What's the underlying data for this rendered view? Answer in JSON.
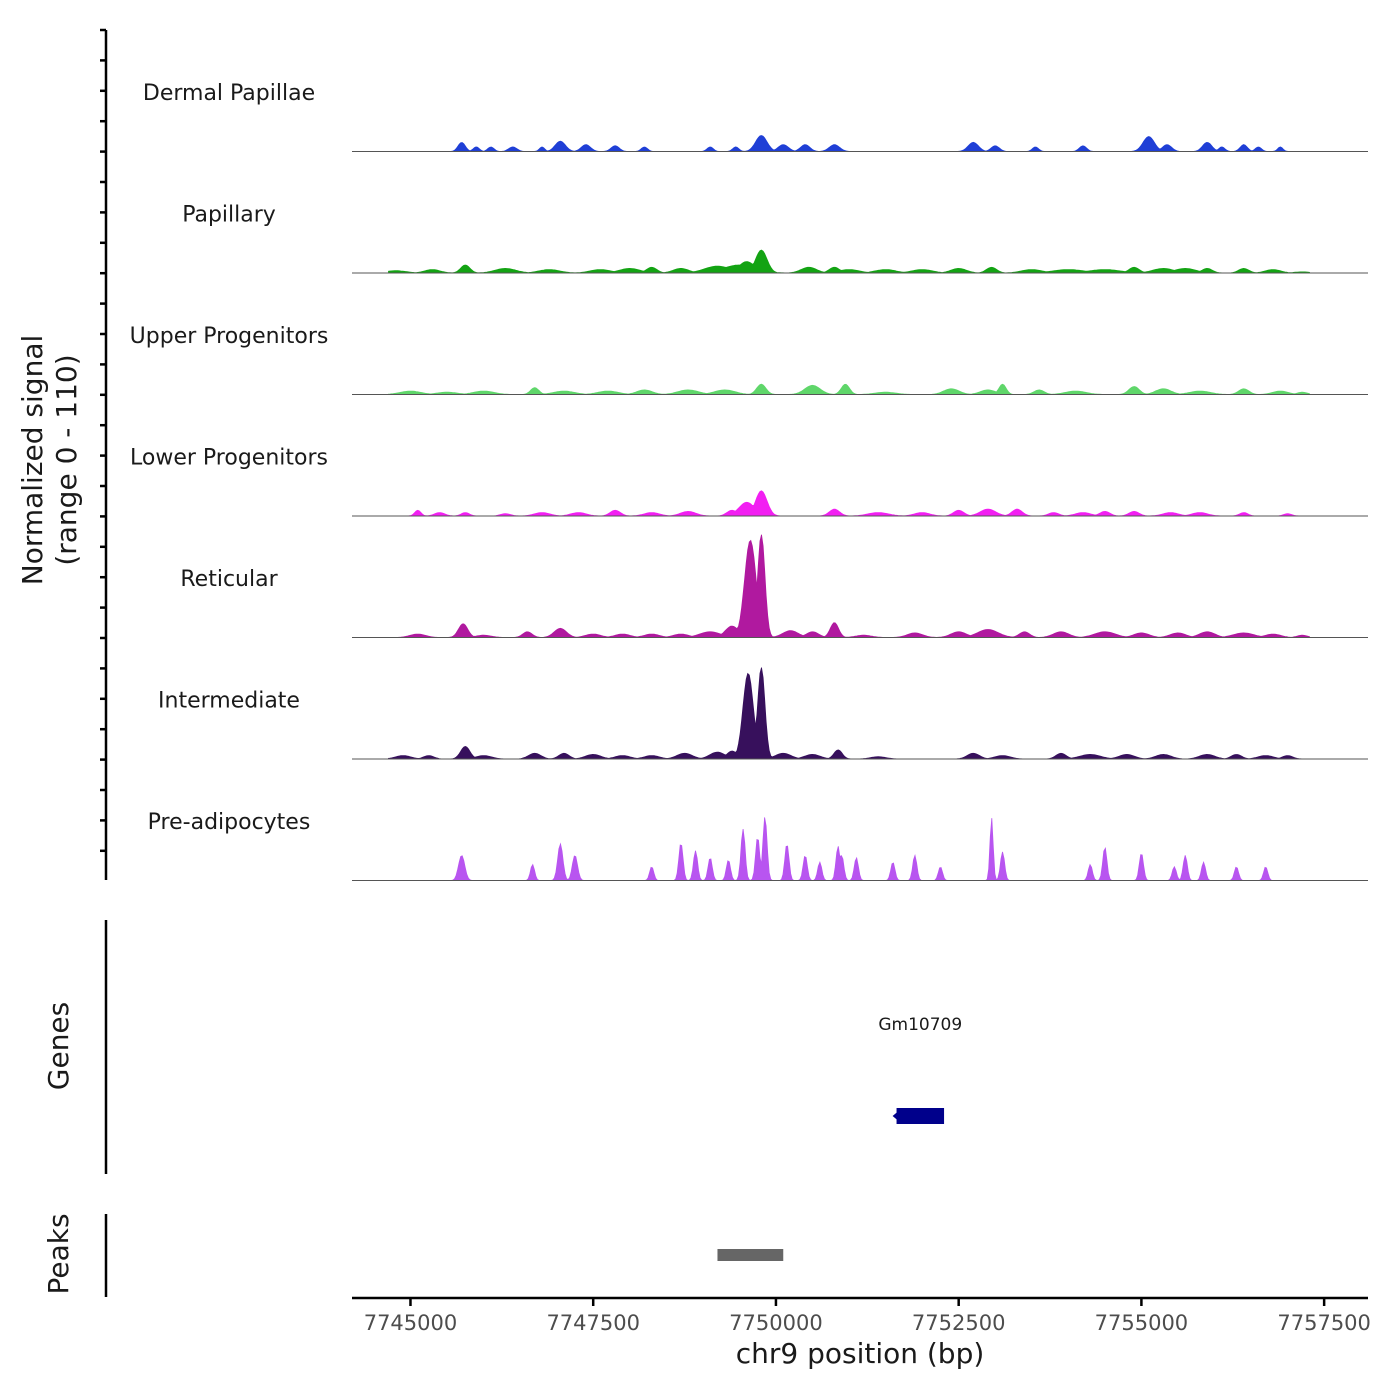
{
  "chart_data": {
    "type": "area",
    "title": "",
    "chromosome": "chr9",
    "xlabel": "chr9 position (bp)",
    "ylabel_line1": "Normalized signal",
    "ylabel_line2": "(range 0 - 110)",
    "y_range": [
      0,
      110
    ],
    "xlim": [
      7744200,
      7758100
    ],
    "x_ticks": [
      7745000,
      7747500,
      7750000,
      7752500,
      7755000,
      7757500
    ],
    "x_tick_labels": [
      "7745000",
      "7747500",
      "7750000",
      "7752500",
      "7755000",
      "7757500"
    ],
    "track_colors": {
      "Dermal Papillae": "#1f3fd6",
      "Papillary": "#13a313",
      "Upper Progenitors": "#5fd66a",
      "Lower Progenitors": "#f21ff2",
      "Reticular": "#b0199f",
      "Intermediate": "#37105c",
      "Pre-adipocytes": "#b855f0"
    },
    "series": [
      {
        "name": "Dermal Papillae",
        "peaks": [
          [
            7745700,
            8,
            70
          ],
          [
            7745900,
            4,
            60
          ],
          [
            7746100,
            4,
            60
          ],
          [
            7746400,
            4,
            80
          ],
          [
            7746800,
            4,
            50
          ],
          [
            7747050,
            9,
            100
          ],
          [
            7747400,
            6,
            90
          ],
          [
            7747800,
            5,
            80
          ],
          [
            7748200,
            4,
            60
          ],
          [
            7749100,
            4,
            60
          ],
          [
            7749450,
            4,
            60
          ],
          [
            7749800,
            14,
            110
          ],
          [
            7750100,
            6,
            100
          ],
          [
            7750400,
            6,
            90
          ],
          [
            7750800,
            6,
            100
          ],
          [
            7752700,
            8,
            100
          ],
          [
            7753000,
            5,
            80
          ],
          [
            7753550,
            4,
            60
          ],
          [
            7754200,
            5,
            70
          ],
          [
            7755100,
            13,
            110
          ],
          [
            7755350,
            6,
            90
          ],
          [
            7755900,
            8,
            90
          ],
          [
            7756100,
            4,
            60
          ],
          [
            7756400,
            6,
            70
          ],
          [
            7756600,
            4,
            60
          ],
          [
            7756900,
            4,
            50
          ]
        ]
      },
      {
        "name": "Papillary",
        "peaks": [
          [
            7744800,
            2,
            200
          ],
          [
            7745300,
            3,
            150
          ],
          [
            7745750,
            7,
            90
          ],
          [
            7746300,
            4,
            200
          ],
          [
            7746900,
            3,
            200
          ],
          [
            7747600,
            3,
            200
          ],
          [
            7748000,
            4,
            200
          ],
          [
            7748300,
            5,
            100
          ],
          [
            7748700,
            4,
            150
          ],
          [
            7749200,
            6,
            250
          ],
          [
            7749600,
            10,
            150
          ],
          [
            7749800,
            20,
            110
          ],
          [
            7749500,
            7,
            300
          ],
          [
            7750450,
            5,
            150
          ],
          [
            7750800,
            5,
            100
          ],
          [
            7751000,
            3,
            200
          ],
          [
            7751500,
            3,
            200
          ],
          [
            7752000,
            3,
            200
          ],
          [
            7752500,
            4,
            150
          ],
          [
            7752950,
            5,
            100
          ],
          [
            7753500,
            3,
            200
          ],
          [
            7754000,
            3,
            300
          ],
          [
            7754500,
            3,
            300
          ],
          [
            7754900,
            5,
            100
          ],
          [
            7755300,
            4,
            200
          ],
          [
            7755600,
            4,
            200
          ],
          [
            7755900,
            4,
            100
          ],
          [
            7756400,
            4,
            100
          ],
          [
            7756800,
            3,
            150
          ],
          [
            7757200,
            1,
            150
          ]
        ]
      },
      {
        "name": "Upper Progenitors",
        "peaks": [
          [
            7745000,
            3,
            200
          ],
          [
            7745500,
            2,
            200
          ],
          [
            7746000,
            3,
            200
          ],
          [
            7746700,
            6,
            80
          ],
          [
            7747100,
            3,
            200
          ],
          [
            7747700,
            3,
            200
          ],
          [
            7748200,
            4,
            150
          ],
          [
            7748800,
            4,
            200
          ],
          [
            7749300,
            4,
            200
          ],
          [
            7749800,
            9,
            90
          ],
          [
            7750500,
            8,
            150
          ],
          [
            7750950,
            9,
            80
          ],
          [
            7751500,
            2,
            200
          ],
          [
            7752400,
            5,
            150
          ],
          [
            7752900,
            4,
            150
          ],
          [
            7753100,
            9,
            70
          ],
          [
            7753600,
            4,
            100
          ],
          [
            7754100,
            3,
            200
          ],
          [
            7754900,
            7,
            100
          ],
          [
            7755300,
            5,
            150
          ],
          [
            7755800,
            3,
            200
          ],
          [
            7756400,
            5,
            100
          ],
          [
            7756900,
            3,
            150
          ],
          [
            7757200,
            2,
            100
          ]
        ]
      },
      {
        "name": "Lower Progenitors",
        "peaks": [
          [
            7745100,
            5,
            60
          ],
          [
            7745400,
            3,
            100
          ],
          [
            7745750,
            3,
            80
          ],
          [
            7746300,
            2,
            100
          ],
          [
            7746800,
            3,
            150
          ],
          [
            7747300,
            3,
            150
          ],
          [
            7747800,
            5,
            100
          ],
          [
            7748300,
            3,
            150
          ],
          [
            7748800,
            4,
            150
          ],
          [
            7749400,
            5,
            100
          ],
          [
            7749600,
            12,
            150
          ],
          [
            7749800,
            22,
            110
          ],
          [
            7750800,
            6,
            100
          ],
          [
            7751400,
            3,
            200
          ],
          [
            7752000,
            3,
            150
          ],
          [
            7752500,
            5,
            100
          ],
          [
            7752900,
            6,
            150
          ],
          [
            7753300,
            6,
            100
          ],
          [
            7753800,
            3,
            100
          ],
          [
            7754200,
            3,
            150
          ],
          [
            7754500,
            4,
            100
          ],
          [
            7754900,
            4,
            100
          ],
          [
            7755400,
            3,
            150
          ],
          [
            7755800,
            3,
            150
          ],
          [
            7756400,
            3,
            80
          ],
          [
            7757000,
            2,
            80
          ]
        ]
      },
      {
        "name": "Reticular",
        "peaks": [
          [
            7745100,
            3,
            150
          ],
          [
            7745720,
            12,
            90
          ],
          [
            7746000,
            2,
            150
          ],
          [
            7746600,
            5,
            90
          ],
          [
            7747050,
            8,
            120
          ],
          [
            7747500,
            3,
            150
          ],
          [
            7747900,
            3,
            150
          ],
          [
            7748300,
            3,
            150
          ],
          [
            7748700,
            3,
            150
          ],
          [
            7749100,
            5,
            200
          ],
          [
            7749400,
            10,
            130
          ],
          [
            7749650,
            85,
            110
          ],
          [
            7749800,
            90,
            70
          ],
          [
            7750200,
            6,
            150
          ],
          [
            7750500,
            5,
            120
          ],
          [
            7750800,
            13,
            80
          ],
          [
            7751200,
            2,
            150
          ],
          [
            7751900,
            4,
            150
          ],
          [
            7752500,
            5,
            150
          ],
          [
            7752900,
            7,
            200
          ],
          [
            7753400,
            5,
            100
          ],
          [
            7753900,
            5,
            150
          ],
          [
            7754500,
            5,
            200
          ],
          [
            7755000,
            4,
            150
          ],
          [
            7755500,
            4,
            150
          ],
          [
            7755900,
            5,
            150
          ],
          [
            7756400,
            4,
            200
          ],
          [
            7756800,
            3,
            150
          ],
          [
            7757200,
            2,
            100
          ]
        ]
      },
      {
        "name": "Intermediate",
        "peaks": [
          [
            7744900,
            3,
            150
          ],
          [
            7745250,
            3,
            100
          ],
          [
            7745750,
            11,
            90
          ],
          [
            7746000,
            3,
            150
          ],
          [
            7746700,
            5,
            120
          ],
          [
            7747100,
            5,
            100
          ],
          [
            7747500,
            4,
            150
          ],
          [
            7747900,
            3,
            150
          ],
          [
            7748300,
            3,
            150
          ],
          [
            7748750,
            5,
            150
          ],
          [
            7749200,
            6,
            150
          ],
          [
            7749400,
            7,
            100
          ],
          [
            7749620,
            75,
            100
          ],
          [
            7749800,
            80,
            70
          ],
          [
            7750100,
            5,
            150
          ],
          [
            7750500,
            4,
            150
          ],
          [
            7750850,
            8,
            80
          ],
          [
            7751400,
            2,
            150
          ],
          [
            7752700,
            5,
            120
          ],
          [
            7753100,
            3,
            150
          ],
          [
            7753900,
            5,
            100
          ],
          [
            7754300,
            4,
            200
          ],
          [
            7754800,
            4,
            150
          ],
          [
            7755300,
            4,
            150
          ],
          [
            7755900,
            4,
            150
          ],
          [
            7756300,
            4,
            100
          ],
          [
            7756700,
            3,
            150
          ],
          [
            7757000,
            3,
            100
          ]
        ]
      },
      {
        "name": "Pre-adipocytes",
        "peaks": [
          [
            7745700,
            22,
            60
          ],
          [
            7746670,
            14,
            40
          ],
          [
            7747050,
            32,
            50
          ],
          [
            7747250,
            22,
            50
          ],
          [
            7748300,
            12,
            40
          ],
          [
            7748700,
            33,
            40
          ],
          [
            7748900,
            26,
            40
          ],
          [
            7749100,
            20,
            40
          ],
          [
            7749350,
            18,
            40
          ],
          [
            7749550,
            45,
            40
          ],
          [
            7749750,
            38,
            40
          ],
          [
            7749850,
            56,
            40
          ],
          [
            7750150,
            32,
            40
          ],
          [
            7750400,
            22,
            40
          ],
          [
            7750600,
            16,
            40
          ],
          [
            7750850,
            30,
            40
          ],
          [
            7750900,
            22,
            40
          ],
          [
            7751100,
            20,
            40
          ],
          [
            7751600,
            16,
            40
          ],
          [
            7751900,
            22,
            40
          ],
          [
            7752250,
            12,
            40
          ],
          [
            7752950,
            55,
            30
          ],
          [
            7753100,
            25,
            40
          ],
          [
            7754300,
            14,
            40
          ],
          [
            7754500,
            29,
            40
          ],
          [
            7755000,
            24,
            40
          ],
          [
            7755450,
            12,
            40
          ],
          [
            7755600,
            22,
            40
          ],
          [
            7755850,
            16,
            40
          ],
          [
            7756300,
            12,
            40
          ],
          [
            7756700,
            12,
            40
          ]
        ]
      }
    ],
    "genes_label": "Genes",
    "genes": [
      {
        "name": "Gm10709",
        "start": 7751650,
        "end": 7752300,
        "strand": "-"
      }
    ],
    "peaks_label": "Peaks",
    "peak_regions": [
      {
        "start": 7749200,
        "end": 7750100
      }
    ]
  }
}
